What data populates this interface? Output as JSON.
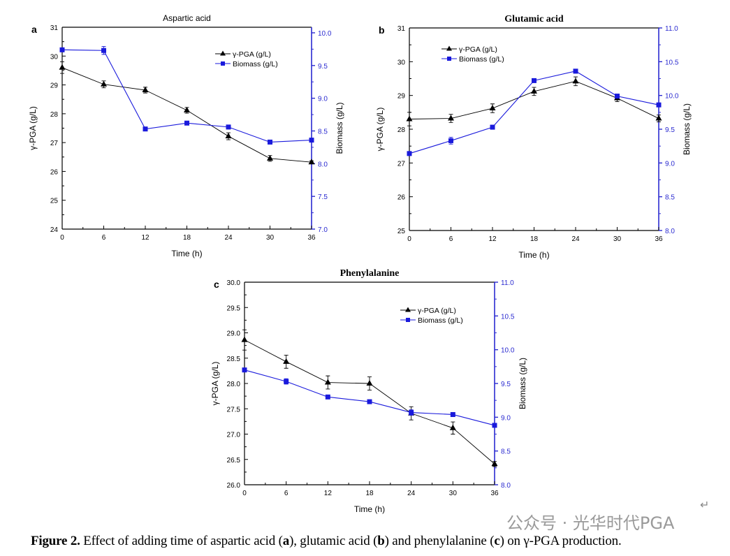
{
  "colors": {
    "pga": "#000000",
    "biomass": "#1a1adc",
    "right_axis": "#2b2bd0"
  },
  "chart_data": [
    {
      "type": "line",
      "panel": "a",
      "title": "Aspartic acid",
      "xlabel": "Time (h)",
      "ylabel": "γ-PGA (g/L)",
      "y2label": "Biomass (g/L)",
      "x": [
        0,
        6,
        12,
        18,
        24,
        30,
        36
      ],
      "xlim": [
        0,
        36
      ],
      "xticks": [
        "0",
        "6",
        "12",
        "18",
        "24",
        "30",
        "36"
      ],
      "ylim": [
        24,
        31
      ],
      "yticks": [
        "24",
        "25",
        "26",
        "27",
        "28",
        "29",
        "30",
        "31"
      ],
      "y2lim": [
        7.0,
        10.085
      ],
      "y2ticks": [
        "7.0",
        "7.5",
        "8.0",
        "8.5",
        "9.0",
        "9.5",
        "10.0"
      ],
      "legend": "top-right",
      "grid": false,
      "series": [
        {
          "name": "γ-PGA (g/L)",
          "axis": "left",
          "values": [
            29.6,
            29.02,
            28.82,
            28.12,
            27.22,
            26.45,
            26.32
          ],
          "errors": [
            0.2,
            0.12,
            0.1,
            0.1,
            0.12,
            0.1,
            0.05
          ]
        },
        {
          "name": "Biomass (g/L)",
          "axis": "right",
          "values": [
            9.74,
            9.73,
            8.53,
            8.62,
            8.56,
            8.33,
            8.36
          ],
          "errors": [
            0.03,
            0.06,
            0.02,
            0.02,
            0.03,
            0.03,
            0.02
          ]
        }
      ]
    },
    {
      "type": "line",
      "panel": "b",
      "title": "Glutamic acid",
      "xlabel": "Time (h)",
      "ylabel": "γ-PGA (g/L)",
      "y2label": "Biomass (g/L)",
      "x": [
        0,
        6,
        12,
        18,
        24,
        30,
        36
      ],
      "xlim": [
        0,
        36
      ],
      "xticks": [
        "0",
        "6",
        "12",
        "18",
        "24",
        "30",
        "36"
      ],
      "ylim": [
        25,
        31
      ],
      "yticks": [
        "25",
        "26",
        "27",
        "28",
        "29",
        "30",
        "31"
      ],
      "y2lim": [
        8.0,
        11.0
      ],
      "y2ticks": [
        "8.0",
        "8.5",
        "9.0",
        "9.5",
        "10.0",
        "10.5",
        "11.0"
      ],
      "legend": "top-left",
      "grid": false,
      "series": [
        {
          "name": "γ-PGA (g/L)",
          "axis": "left",
          "values": [
            28.3,
            28.32,
            28.62,
            29.12,
            29.42,
            28.92,
            28.32
          ],
          "errors": [
            0.2,
            0.12,
            0.13,
            0.12,
            0.13,
            0.1,
            0.1
          ]
        },
        {
          "name": "Biomass (g/L)",
          "axis": "right",
          "values": [
            9.14,
            9.33,
            9.53,
            10.22,
            10.36,
            9.99,
            9.86
          ],
          "errors": [
            0.03,
            0.05,
            0.03,
            0.02,
            0.03,
            0.03,
            0.03
          ]
        }
      ]
    },
    {
      "type": "line",
      "panel": "c",
      "title": "Phenylalanine",
      "xlabel": "Time (h)",
      "ylabel": "γ-PGA (g/L)",
      "y2label": "Biomass (g/L)",
      "x": [
        0,
        6,
        12,
        18,
        24,
        30,
        36
      ],
      "xlim": [
        0,
        36
      ],
      "xticks": [
        "0",
        "6",
        "12",
        "18",
        "24",
        "30",
        "36"
      ],
      "ylim": [
        26,
        30
      ],
      "yticks": [
        "26.0",
        "26.5",
        "27.0",
        "27.5",
        "28.0",
        "28.5",
        "29.0",
        "29.5",
        "30.0"
      ],
      "y2lim": [
        8.0,
        11.0
      ],
      "y2ticks": [
        "8.0",
        "8.5",
        "9.0",
        "9.5",
        "10.0",
        "10.5",
        "11.0"
      ],
      "legend": "top-right",
      "grid": false,
      "series": [
        {
          "name": "γ-PGA (g/L)",
          "axis": "left",
          "values": [
            28.86,
            28.43,
            28.02,
            28.0,
            27.41,
            27.12,
            26.41
          ],
          "errors": [
            0.2,
            0.13,
            0.13,
            0.13,
            0.13,
            0.12,
            0.05
          ]
        },
        {
          "name": "Biomass (g/L)",
          "axis": "right",
          "values": [
            9.7,
            9.53,
            9.3,
            9.23,
            9.07,
            9.04,
            8.88
          ],
          "errors": [
            0.03,
            0.04,
            0.02,
            0.02,
            0.04,
            0.03,
            0.02
          ]
        }
      ]
    }
  ],
  "caption": {
    "label": "Figure 2.",
    "text_1": " Effect of adding time of aspartic acid (",
    "a": "a",
    "text_2": "), glutamic acid (",
    "b": "b",
    "text_3": ") and phenylalanine (",
    "c": "c",
    "text_4": ") on γ-PGA production."
  },
  "watermark": "公众号 · 光华时代PGA"
}
